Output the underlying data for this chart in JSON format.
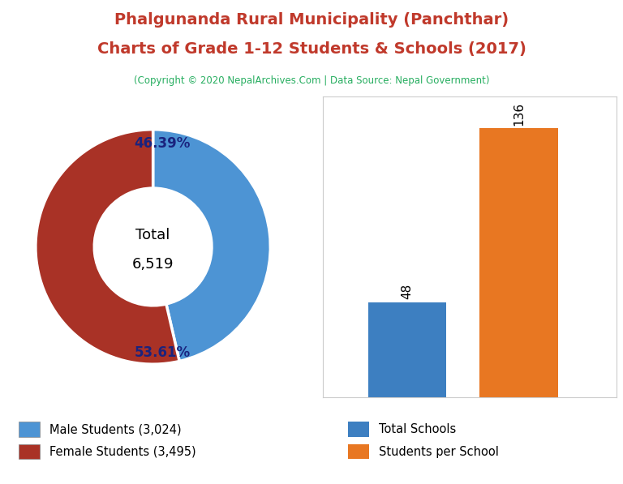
{
  "title_line1": "Phalgunanda Rural Municipality (Panchthar)",
  "title_line2": "Charts of Grade 1-12 Students & Schools (2017)",
  "subtitle": "(Copyright © 2020 NepalArchives.Com | Data Source: Nepal Government)",
  "title_color": "#c0392b",
  "subtitle_color": "#27ae60",
  "male_students": 3024,
  "female_students": 3495,
  "total_students": 6519,
  "male_pct": 46.39,
  "female_pct": 53.61,
  "male_color": "#4d94d4",
  "female_color": "#a93226",
  "bar_values": [
    48,
    136
  ],
  "bar_labels": [
    "Total Schools",
    "Students per School"
  ],
  "bar_colors": [
    "#3d7fc1",
    "#e87722"
  ],
  "legend_male": "Male Students (3,024)",
  "legend_female": "Female Students (3,495)",
  "pct_label_color": "#1a237e",
  "bg_color": "#ffffff"
}
